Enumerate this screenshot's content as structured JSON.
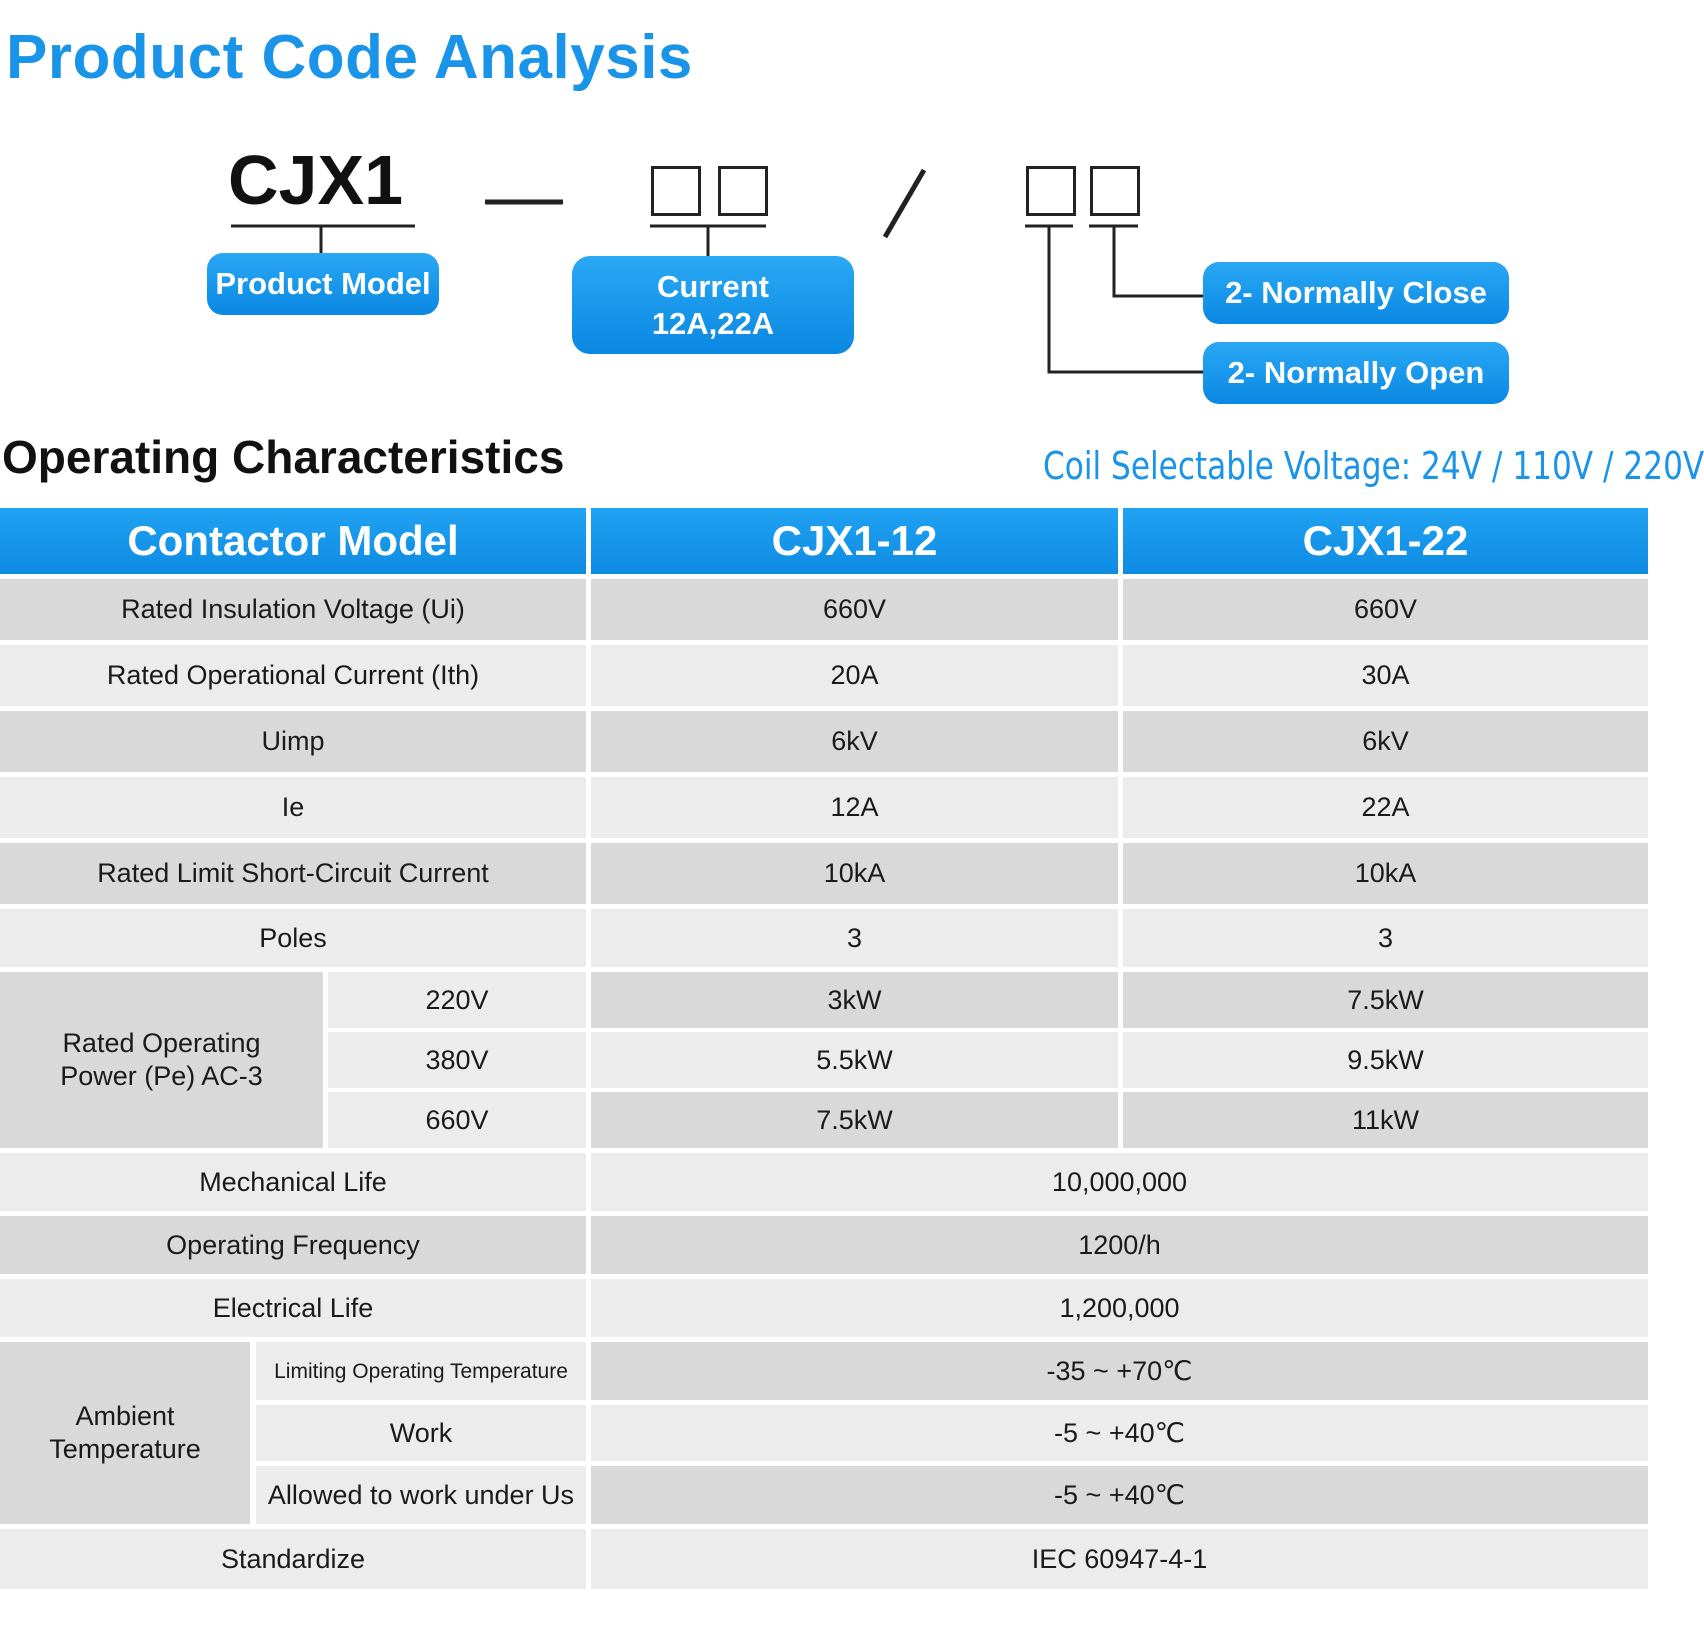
{
  "title": "Product Code Analysis",
  "code": {
    "model": "CJX1",
    "product_model_label": "Product Model",
    "current_label_line1": "Current",
    "current_label_line2": "12A,22A",
    "normally_close_label": "2- Normally Close",
    "normally_open_label": "2- Normally Open"
  },
  "section_title": "Operating Characteristics",
  "coil_voltage": "Coil Selectable Voltage: 24V / 110V / 220V",
  "table": {
    "header": {
      "col0": "Contactor Model",
      "col1": "CJX1-12",
      "col2": "CJX1-22"
    },
    "rows": [
      {
        "label": "Rated Insulation Voltage (Ui)",
        "v1": "660V",
        "v2": "660V"
      },
      {
        "label": "Rated Operational Current (Ith)",
        "v1": "20A",
        "v2": "30A"
      },
      {
        "label": "Uimp",
        "v1": "6kV",
        "v2": "6kV"
      },
      {
        "label": "Ie",
        "v1": "12A",
        "v2": "22A"
      },
      {
        "label": "Rated Limit Short-Circuit Current",
        "v1": "10kA",
        "v2": "10kA"
      },
      {
        "label": "Poles",
        "v1": "3",
        "v2": "3"
      }
    ],
    "power": {
      "label_line1": "Rated Operating",
      "label_line2": "Power (Pe) AC-3",
      "rows": [
        {
          "voltage": "220V",
          "v1": "3kW",
          "v2": "7.5kW"
        },
        {
          "voltage": "380V",
          "v1": "5.5kW",
          "v2": "9.5kW"
        },
        {
          "voltage": "660V",
          "v1": "7.5kW",
          "v2": "11kW"
        }
      ]
    },
    "merged_rows": [
      {
        "label": "Mechanical Life",
        "value": "10,000,000"
      },
      {
        "label": "Operating Frequency",
        "value": "1200/h"
      },
      {
        "label": "Electrical Life",
        "value": "1,200,000"
      }
    ],
    "ambient": {
      "label_line1": "Ambient",
      "label_line2": "Temperature",
      "rows": [
        {
          "label": "Limiting Operating Temperature",
          "value": "-35 ~ +70℃"
        },
        {
          "label": "Work",
          "value": "-5 ~ +40℃"
        },
        {
          "label": "Allowed to work under Us",
          "value": "-5 ~ +40℃"
        }
      ]
    },
    "standard": {
      "label": "Standardize",
      "value": "IEC 60947-4-1"
    }
  }
}
